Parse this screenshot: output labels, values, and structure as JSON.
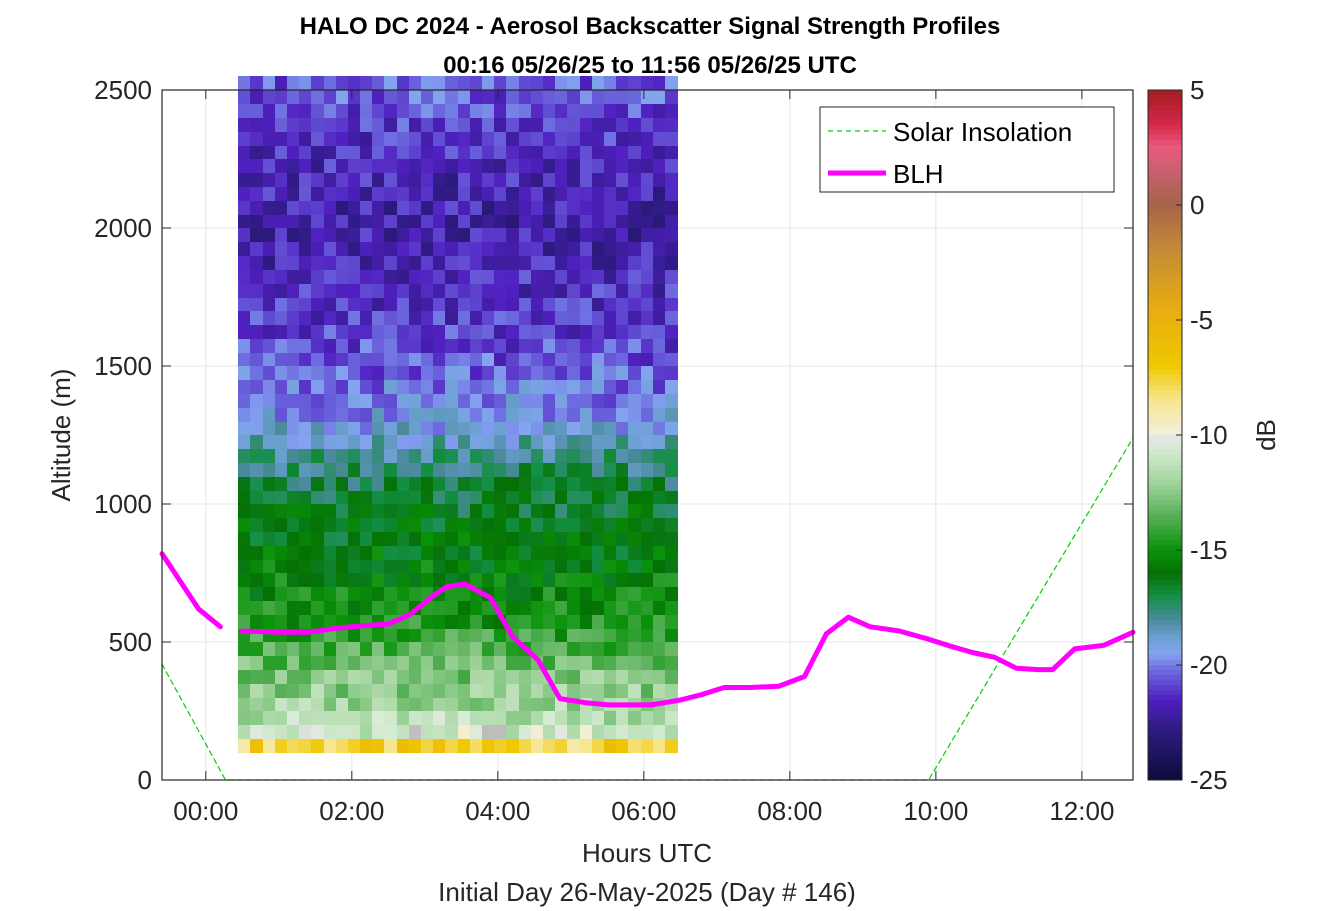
{
  "chart_data": {
    "type": "heatmap",
    "title": "HALO DC 2024 - Aerosol Backscatter Signal Strength Profiles",
    "subtitle": "00:16 05/26/25 to 11:56 05/26/25  UTC",
    "xlabel": "Hours UTC",
    "xlabel2": "Initial Day 26-May-2025 (Day # 146)",
    "ylabel": "Altitude (m)",
    "colorbar_label": "dB",
    "xlim": [
      -0.6,
      12.7
    ],
    "ylim": [
      0,
      2500
    ],
    "x_ticks": [
      0,
      2,
      4,
      6,
      8,
      10,
      12
    ],
    "x_tick_labels": [
      "00:00",
      "02:00",
      "04:00",
      "06:00",
      "08:00",
      "10:00",
      "12:00"
    ],
    "y_ticks": [
      0,
      500,
      1000,
      1500,
      2000,
      2500
    ],
    "y_tick_labels": [
      "0",
      "500",
      "1000",
      "1500",
      "2000",
      "2500"
    ],
    "clim": [
      -25,
      5
    ],
    "cbar_ticks": [
      5,
      0,
      -5,
      -10,
      -15,
      -20,
      -25
    ],
    "cbar_tick_labels": [
      "5",
      "0",
      "-5",
      "-10",
      "-15",
      "-20",
      "-25"
    ],
    "colormap": [
      {
        "v": -25,
        "c": "#0d0c3a"
      },
      {
        "v": -23,
        "c": "#2a1a7a"
      },
      {
        "v": -21.5,
        "c": "#5020c0"
      },
      {
        "v": -20.2,
        "c": "#6e6ee0"
      },
      {
        "v": -19.5,
        "c": "#84a4f0"
      },
      {
        "v": -18.8,
        "c": "#6aa0d0"
      },
      {
        "v": -18,
        "c": "#4a8a9a"
      },
      {
        "v": -17,
        "c": "#138f43"
      },
      {
        "v": -16,
        "c": "#057005"
      },
      {
        "v": -15,
        "c": "#0a920a"
      },
      {
        "v": -13.5,
        "c": "#58b058"
      },
      {
        "v": -12,
        "c": "#a5d6a0"
      },
      {
        "v": -10.5,
        "c": "#d9ecd6"
      },
      {
        "v": -10.1,
        "c": "#e6e6e6"
      },
      {
        "v": -10,
        "c": "#b4b4b4"
      },
      {
        "v": -9.9,
        "c": "#f2efd8"
      },
      {
        "v": -8.5,
        "c": "#f7e690"
      },
      {
        "v": -7,
        "c": "#f0c800"
      },
      {
        "v": -4.5,
        "c": "#e8ac10"
      },
      {
        "v": -2,
        "c": "#c48c36"
      },
      {
        "v": 0,
        "c": "#a6644a"
      },
      {
        "v": 1.5,
        "c": "#c86070"
      },
      {
        "v": 2.5,
        "c": "#ea5a7e"
      },
      {
        "v": 3.5,
        "c": "#d42848"
      },
      {
        "v": 5,
        "c": "#a41c22"
      }
    ],
    "heatmap": {
      "x_start": 0.45,
      "x_step": 0.167,
      "cols": 36,
      "y_start": 100,
      "y_step": 50,
      "rows": 49,
      "control_points": [
        {
          "z": 120,
          "v": -7.5
        },
        {
          "z": 170,
          "v": -10.8
        },
        {
          "z": 250,
          "v": -11.8
        },
        {
          "z": 400,
          "v": -13.0
        },
        {
          "z": 600,
          "v": -15.0
        },
        {
          "z": 800,
          "v": -15.8
        },
        {
          "z": 1000,
          "v": -16.6
        },
        {
          "z": 1150,
          "v": -17.5
        },
        {
          "z": 1300,
          "v": -19.5
        },
        {
          "z": 1600,
          "v": -21.0
        },
        {
          "z": 2000,
          "v": -22.0
        },
        {
          "z": 2300,
          "v": -21.5
        },
        {
          "z": 2500,
          "v": -20.5
        }
      ]
    },
    "series": [
      {
        "name": "Solar Insolation",
        "style": "dashed",
        "color": "#00d000",
        "x": [
          -0.6,
          0.27,
          9.9,
          12.7
        ],
        "y": [
          420,
          0,
          0,
          1240
        ]
      },
      {
        "name": "BLH",
        "style": "solid",
        "color": "#ff00ff",
        "segments": [
          {
            "x": [
              -0.6,
              -0.4,
              -0.1,
              0.2
            ],
            "y": [
              820,
              740,
              620,
              555
            ]
          },
          {
            "x": [
              0.5,
              1.0,
              1.4,
              1.8,
              2.2,
              2.5,
              2.8,
              3.1,
              3.3,
              3.55,
              3.9,
              4.2,
              4.55,
              4.85,
              5.2,
              5.5,
              5.8,
              6.1,
              6.5,
              6.8,
              7.1,
              7.45,
              7.85,
              8.2,
              8.5,
              8.8,
              9.1,
              9.5,
              9.9,
              10.2,
              10.5,
              10.8,
              11.1,
              11.4,
              11.6,
              11.9,
              12.3,
              12.7
            ],
            "y": [
              540,
              535,
              535,
              550,
              560,
              565,
              600,
              665,
              700,
              710,
              660,
              520,
              435,
              295,
              280,
              273,
              272,
              272,
              290,
              310,
              335,
              335,
              340,
              375,
              530,
              590,
              555,
              540,
              510,
              485,
              462,
              445,
              405,
              400,
              400,
              475,
              488,
              535
            ]
          }
        ]
      }
    ],
    "legend": {
      "position": "top-right",
      "entries": [
        "Solar Insolation",
        "BLH"
      ]
    },
    "grid": true
  }
}
